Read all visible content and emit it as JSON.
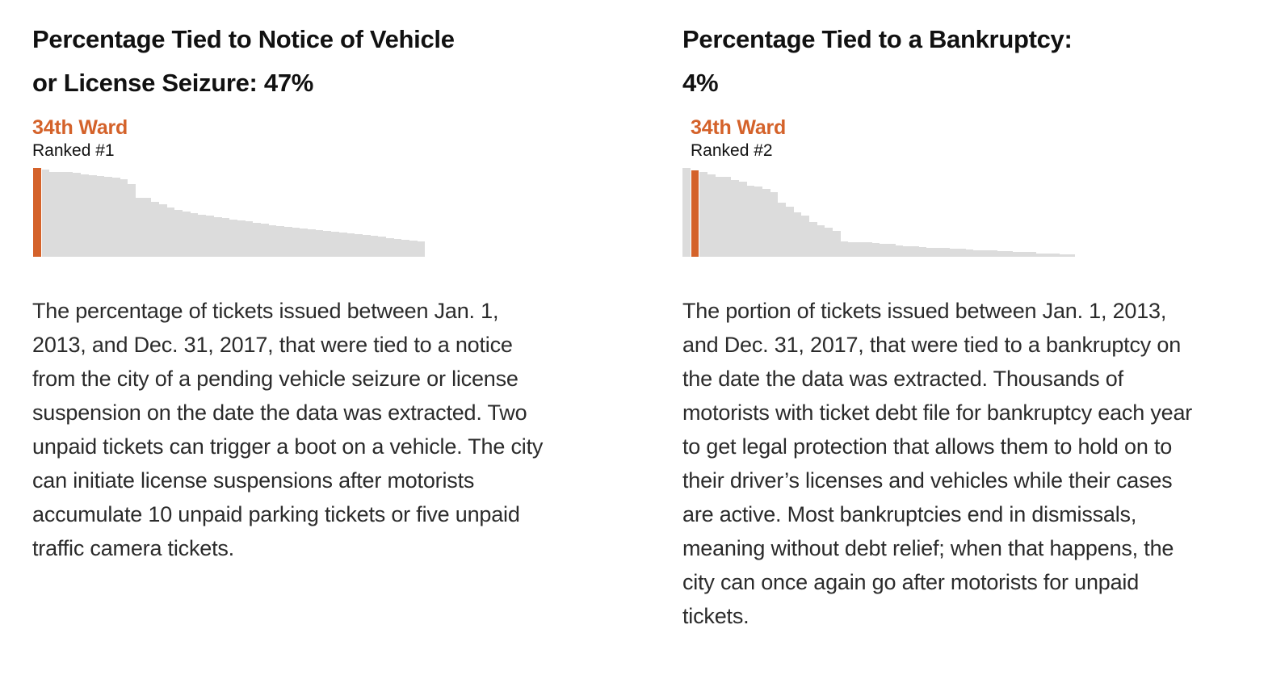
{
  "colors": {
    "accent_orange": "#d4622a",
    "bar_gray": "#dcdcdc",
    "heading_text": "#111111",
    "body_text": "#2b2b2b",
    "background": "#ffffff"
  },
  "panels": [
    {
      "title": "Percentage Tied to Notice of Vehicle or License Seizure: 47%",
      "ward": "34th Ward",
      "rank": "Ranked #1",
      "description": "The percentage of tickets issued between Jan. 1, 2013, and Dec. 31, 2017, that were tied to a notice from the city of a pending vehicle seizure or license suspension on the date the data was extracted. Two unpaid tickets can trigger a boot on a vehicle. The city can initiate license suspensions after motorists accumulate 10 unpaid parking tickets or five unpaid traffic camera tickets."
    },
    {
      "title": "Percentage Tied to a Bankruptcy: 4%",
      "ward": "34th Ward",
      "rank": "Ranked #2",
      "description": "The portion of tickets issued between Jan. 1, 2013, and Dec. 31, 2017, that were tied to a bankruptcy on the date the data was extracted. Thousands of motorists with ticket debt file for bankruptcy each year to get legal protection that allows them to hold on to their driver’s licenses and vehicles while their cases are active. Most bankruptcies end in dismissals, meaning without debt relief; when that happens, the city can once again go after motorists for unpaid tickets."
    }
  ],
  "chart_data": [
    {
      "type": "bar",
      "title": "Percentage Tied to Notice of Vehicle or License Seizure: 47%",
      "note": "50 Chicago wards sorted descending; highlighted bar is the 34th Ward, ranked #1",
      "unit": "%",
      "axes_shown": false,
      "ylim": [
        0,
        47
      ],
      "highlight_index": 0,
      "highlight_label": "34th Ward",
      "highlight_value": 47,
      "bar_color": "#dcdcdc",
      "highlight_color": "#d4622a",
      "values": [
        47.0,
        46.0,
        44.8,
        44.8,
        44.8,
        44.3,
        43.7,
        43.1,
        42.7,
        42.3,
        41.7,
        41.2,
        38.4,
        31.2,
        31.2,
        29.0,
        27.6,
        26.2,
        25.0,
        24.0,
        23.0,
        22.4,
        21.8,
        21.1,
        20.4,
        19.7,
        19.3,
        18.7,
        18.0,
        17.5,
        16.8,
        16.4,
        16.0,
        15.5,
        15.1,
        14.7,
        14.2,
        13.8,
        13.4,
        12.9,
        12.5,
        12.1,
        11.6,
        11.1,
        10.5,
        9.9,
        9.3,
        8.8,
        8.5,
        8.2
      ]
    },
    {
      "type": "bar",
      "title": "Percentage Tied to a Bankruptcy: 4%",
      "note": "50 Chicago wards sorted descending; highlighted bar is the 34th Ward, ranked #2",
      "unit": "%",
      "axes_shown": false,
      "ylim": [
        0,
        4.1
      ],
      "highlight_index": 1,
      "highlight_label": "34th Ward",
      "highlight_value": 4,
      "bar_color": "#dcdcdc",
      "highlight_color": "#d4622a",
      "values": [
        4.1,
        4.0,
        3.9,
        3.8,
        3.7,
        3.7,
        3.55,
        3.45,
        3.3,
        3.25,
        3.15,
        3.0,
        2.5,
        2.3,
        2.05,
        1.9,
        1.6,
        1.45,
        1.35,
        1.2,
        0.72,
        0.68,
        0.68,
        0.66,
        0.62,
        0.6,
        0.58,
        0.52,
        0.5,
        0.48,
        0.45,
        0.43,
        0.42,
        0.4,
        0.38,
        0.36,
        0.32,
        0.3,
        0.3,
        0.29,
        0.28,
        0.25,
        0.24,
        0.23,
        0.22,
        0.16,
        0.15,
        0.14,
        0.13,
        0.12
      ]
    }
  ]
}
